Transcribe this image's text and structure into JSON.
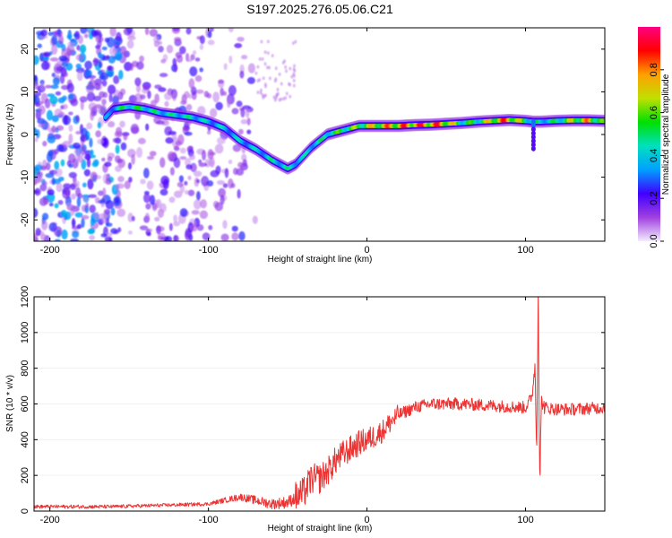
{
  "title": "S197.2025.276.05.06.C21",
  "chart_data": [
    {
      "type": "heatmap",
      "name": "spectrogram",
      "xlabel": "Height of straight line (km)",
      "ylabel": "Frequency (Hz)",
      "xlim": [
        -210,
        150
      ],
      "ylim": [
        -25,
        25
      ],
      "xticks": [
        -200,
        -100,
        0,
        100
      ],
      "yticks": [
        -20,
        -10,
        0,
        10,
        20
      ],
      "colorbar": {
        "label": "Normalized spectral amplitude",
        "range": [
          0,
          1
        ],
        "ticks": [
          0,
          0.2,
          0.4,
          0.6,
          0.8
        ],
        "colors": [
          "#f4ecff",
          "#a040e0",
          "#4000ff",
          "#00a0ff",
          "#00e0c0",
          "#00e000",
          "#c0e000",
          "#ffa000",
          "#ff0000",
          "#ff0080"
        ]
      },
      "ridge": {
        "x": [
          -165,
          -160,
          -150,
          -140,
          -130,
          -120,
          -110,
          -100,
          -90,
          -80,
          -70,
          -60,
          -50,
          -45,
          -40,
          -35,
          -30,
          -25,
          -20,
          -15,
          -10,
          -5,
          0,
          10,
          20,
          30,
          40,
          50,
          60,
          70,
          80,
          90,
          100,
          105,
          110,
          120,
          130,
          140,
          150
        ],
        "freq": [
          4,
          6,
          6.5,
          6,
          5,
          4.5,
          4,
          3,
          1.5,
          -1.5,
          -3.5,
          -6,
          -8,
          -7,
          -5,
          -3,
          -1.5,
          0,
          0.5,
          1,
          1.5,
          2,
          2,
          2,
          2,
          2.2,
          2.3,
          2.5,
          2.7,
          3,
          3.2,
          3.4,
          3.2,
          3,
          3,
          3.2,
          3.3,
          3.3,
          3.2
        ],
        "amplitude": [
          0.35,
          0.45,
          0.6,
          0.55,
          0.5,
          0.5,
          0.5,
          0.45,
          0.45,
          0.45,
          0.45,
          0.5,
          0.5,
          0.5,
          0.45,
          0.5,
          0.5,
          0.55,
          0.6,
          0.65,
          0.65,
          0.7,
          0.75,
          0.85,
          0.9,
          0.95,
          0.95,
          0.9,
          0.6,
          0.6,
          0.85,
          0.95,
          0.6,
          0.55,
          0.5,
          0.55,
          0.75,
          0.85,
          0.6
        ]
      }
    },
    {
      "type": "line",
      "name": "snr",
      "xlabel": "Height of straight line (km)",
      "ylabel": "SNR (10 * v/v)",
      "xlim": [
        -210,
        150
      ],
      "ylim": [
        0,
        1200
      ],
      "xticks": [
        -200,
        -100,
        0,
        100
      ],
      "yticks": [
        0,
        200,
        400,
        600,
        800,
        1000,
        1200
      ],
      "color": "#ee3333",
      "series": [
        {
          "name": "SNR",
          "x": [
            -210,
            -180,
            -160,
            -140,
            -120,
            -100,
            -90,
            -80,
            -70,
            -60,
            -50,
            -40,
            -35,
            -30,
            -25,
            -20,
            -15,
            -10,
            -5,
            0,
            5,
            10,
            15,
            20,
            25,
            30,
            40,
            60,
            80,
            100,
            104,
            106,
            107,
            108,
            109,
            110,
            112,
            120,
            130,
            140,
            150
          ],
          "y": [
            25,
            25,
            25,
            30,
            35,
            40,
            60,
            80,
            60,
            40,
            50,
            100,
            180,
            180,
            220,
            280,
            320,
            350,
            380,
            400,
            420,
            450,
            500,
            540,
            560,
            580,
            600,
            600,
            590,
            580,
            640,
            820,
            300,
            1250,
            130,
            620,
            580,
            570,
            570,
            575,
            580
          ]
        }
      ]
    }
  ]
}
